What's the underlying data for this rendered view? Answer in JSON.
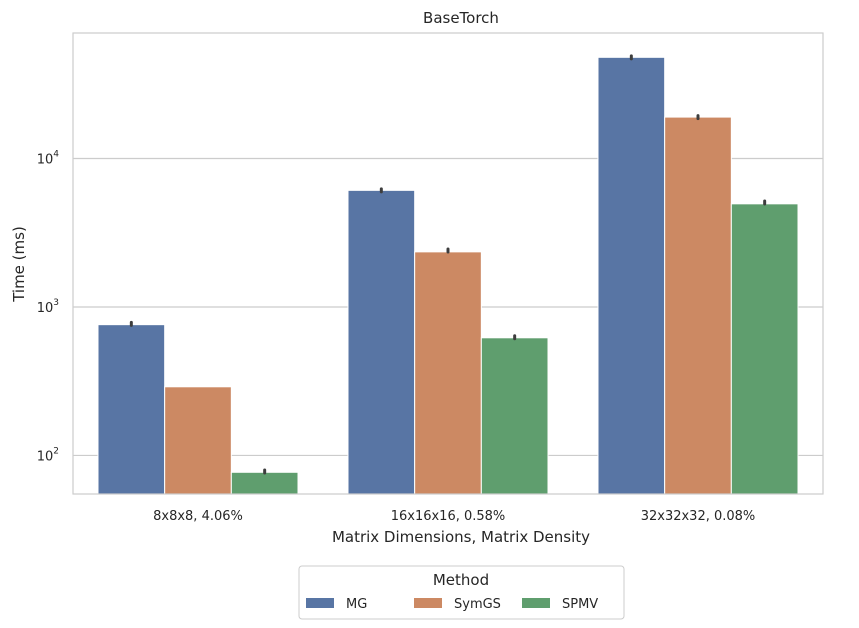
{
  "chart_data": {
    "type": "bar",
    "title": "BaseTorch",
    "xlabel": "Matrix Dimensions, Matrix Density",
    "ylabel": "Time (ms)",
    "y_scale": "log",
    "ylim": [
      55,
      70000
    ],
    "y_ticks": [
      {
        "value": 100,
        "base": "10",
        "exp": "2"
      },
      {
        "value": 1000,
        "base": "10",
        "exp": "3"
      },
      {
        "value": 10000,
        "base": "10",
        "exp": "4"
      }
    ],
    "grid": "horizontal",
    "categories": [
      "8x8x8, 4.06%",
      "16x16x16, 0.58%",
      "32x32x32, 0.08%"
    ],
    "series": [
      {
        "name": "MG",
        "color": "#5875a4",
        "values": [
          760,
          6100,
          48000
        ]
      },
      {
        "name": "SymGS",
        "color": "#cc8963",
        "values": [
          290,
          2350,
          19000
        ]
      },
      {
        "name": "SPMV",
        "color": "#5f9e6e",
        "values": [
          77,
          620,
          4950
        ]
      }
    ],
    "error_caps": [
      [
        770,
        null,
        78
      ],
      [
        6100,
        2400,
        625
      ],
      [
        48000,
        19000,
        5050
      ]
    ],
    "legend": {
      "title": "Method",
      "placement": "bottom-center"
    }
  }
}
